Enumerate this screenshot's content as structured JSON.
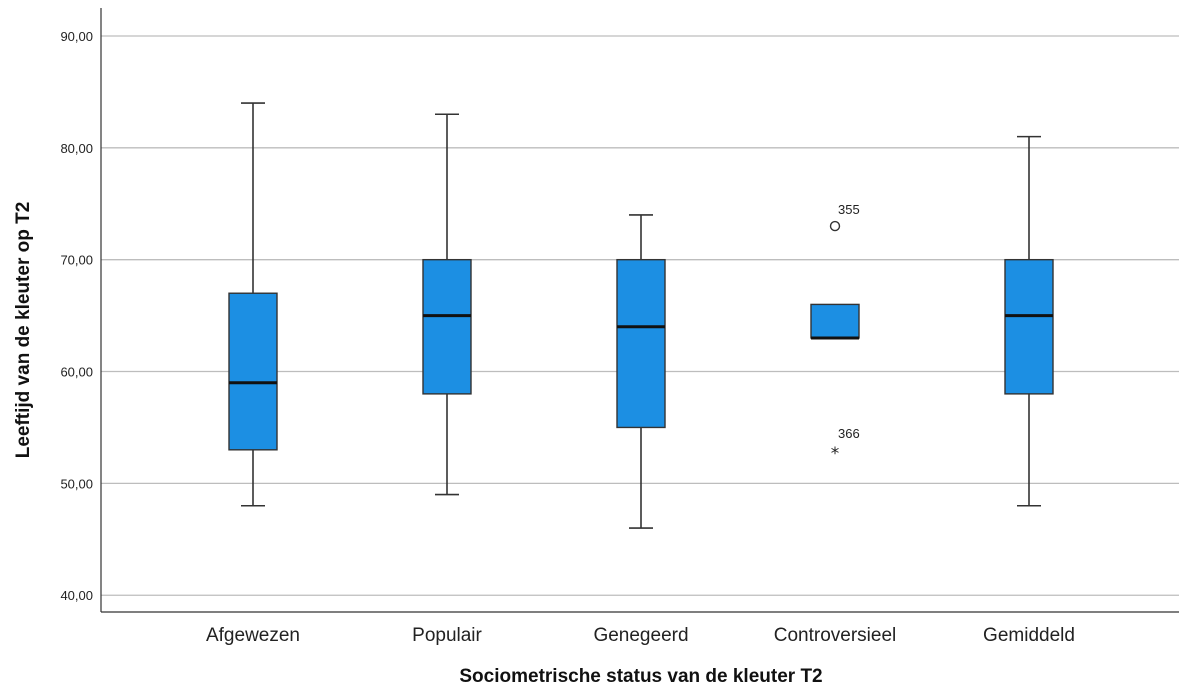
{
  "chart_data": {
    "type": "boxplot",
    "xlabel": "Sociometrische status van de kleuter T2",
    "ylabel": "Leeftijd van de kleuter op T2",
    "ylim": [
      38.5,
      92.5
    ],
    "yticks": [
      40,
      50,
      60,
      70,
      80,
      90
    ],
    "ytick_labels": [
      "40,00",
      "50,00",
      "60,00",
      "70,00",
      "80,00",
      "90,00"
    ],
    "grid": true,
    "box_color": "#1c8fe3",
    "categories": [
      "Afgewezen",
      "Populair",
      "Genegeerd",
      "Controversieel",
      "Gemiddeld"
    ],
    "boxes": [
      {
        "category": "Afgewezen",
        "whisker_low": 48,
        "q1": 53,
        "median": 59,
        "q3": 67,
        "whisker_high": 84,
        "outliers": []
      },
      {
        "category": "Populair",
        "whisker_low": 49,
        "q1": 58,
        "median": 65,
        "q3": 70,
        "whisker_high": 83,
        "outliers": []
      },
      {
        "category": "Genegeerd",
        "whisker_low": 46,
        "q1": 55,
        "median": 64,
        "q3": 70,
        "whisker_high": 74,
        "outliers": []
      },
      {
        "category": "Controversieel",
        "whisker_low": 63,
        "q1": 63,
        "median": 63,
        "q3": 66,
        "whisker_high": 66,
        "outliers": [
          {
            "value": 73,
            "label": "355",
            "marker": "circle"
          },
          {
            "value": 53,
            "label": "366",
            "marker": "star"
          }
        ]
      },
      {
        "category": "Gemiddeld",
        "whisker_low": 48,
        "q1": 58,
        "median": 65,
        "q3": 70,
        "whisker_high": 81,
        "outliers": []
      }
    ]
  }
}
